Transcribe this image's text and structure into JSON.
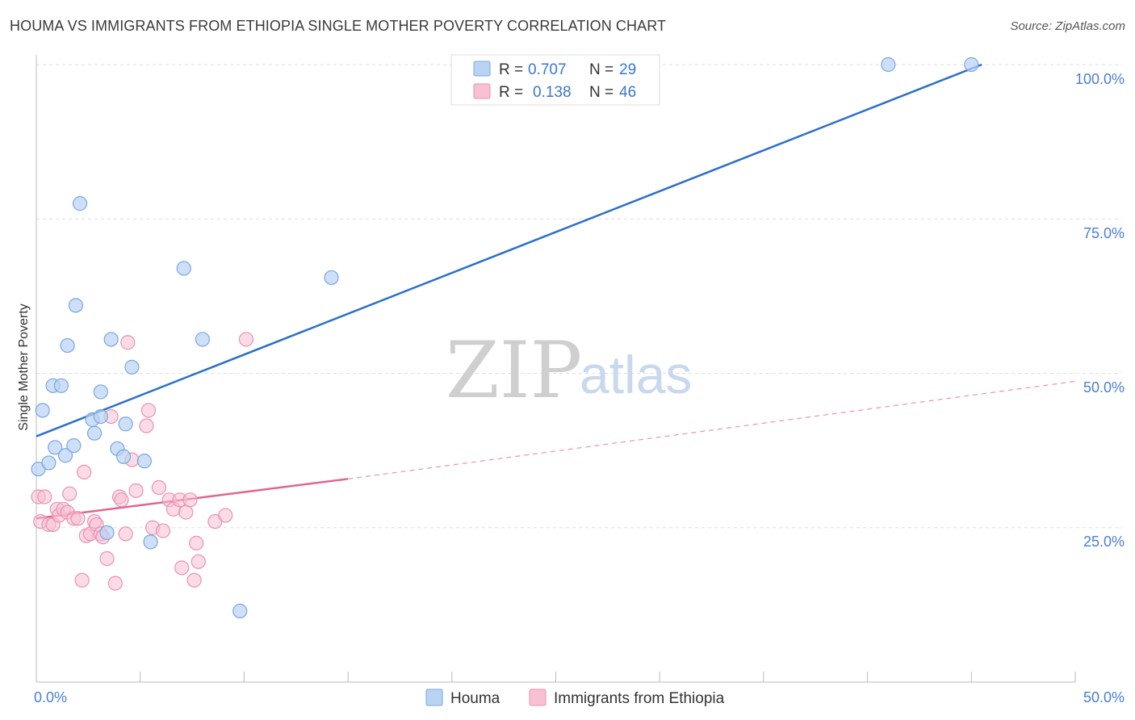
{
  "header": {
    "title": "HOUMA VS IMMIGRANTS FROM ETHIOPIA SINGLE MOTHER POVERTY CORRELATION CHART",
    "source": "Source: ZipAtlas.com"
  },
  "watermark": {
    "zip": "ZIP",
    "atlas": "atlas"
  },
  "legend_top": {
    "r_label": "R =",
    "n_label": "N =",
    "rows": [
      {
        "r": "0.707",
        "n": "29"
      },
      {
        "r": "0.138",
        "n": "46"
      }
    ]
  },
  "colors": {
    "houma_fill": "#b9d3f5",
    "houma_stroke": "#7aa6e0",
    "houma_line": "#2a6fce",
    "ethiopia_fill": "#f8c0d2",
    "ethiopia_stroke": "#e992b1",
    "ethiopia_line": "#e0658f",
    "grid": "#dddddd"
  },
  "chart_data": {
    "type": "scatter",
    "title": "HOUMA VS IMMIGRANTS FROM ETHIOPIA SINGLE MOTHER POVERTY CORRELATION CHART",
    "xlabel": "",
    "ylabel": "Single Mother Poverty",
    "xlim": [
      0,
      50
    ],
    "ylim": [
      0,
      102.5
    ],
    "x_tick_labels": [
      "0.0%",
      "50.0%"
    ],
    "y_ticks": [
      25,
      50,
      75,
      100
    ],
    "y_tick_labels": [
      "25.0%",
      "50.0%",
      "75.0%",
      "100.0%"
    ],
    "grid": true,
    "legend_position": "top-center",
    "series": [
      {
        "name": "Houma",
        "R": 0.707,
        "N": 29,
        "points": [
          [
            0.1,
            34.5
          ],
          [
            0.3,
            44.0
          ],
          [
            0.6,
            35.5
          ],
          [
            0.8,
            48.0
          ],
          [
            0.9,
            38.0
          ],
          [
            1.2,
            48.0
          ],
          [
            1.4,
            36.7
          ],
          [
            1.5,
            54.5
          ],
          [
            1.8,
            38.3
          ],
          [
            1.9,
            61.0
          ],
          [
            2.1,
            77.5
          ],
          [
            2.7,
            42.5
          ],
          [
            2.8,
            40.3
          ],
          [
            3.1,
            43.0
          ],
          [
            3.1,
            47.0
          ],
          [
            3.4,
            24.2
          ],
          [
            3.6,
            55.5
          ],
          [
            3.9,
            37.8
          ],
          [
            4.2,
            36.5
          ],
          [
            4.3,
            41.8
          ],
          [
            4.6,
            51.0
          ],
          [
            5.2,
            35.8
          ],
          [
            5.5,
            22.7
          ],
          [
            7.1,
            67.0
          ],
          [
            8.0,
            55.5
          ],
          [
            9.8,
            11.5
          ],
          [
            14.2,
            65.5
          ],
          [
            41.0,
            100.0
          ],
          [
            45.0,
            100.0
          ]
        ],
        "trend": {
          "x": [
            0,
            45.5
          ],
          "y": [
            39.8,
            100.0
          ]
        }
      },
      {
        "name": "Immigrants from Ethiopia",
        "R": 0.138,
        "N": 46,
        "points": [
          [
            0.1,
            30.0
          ],
          [
            0.2,
            26.0
          ],
          [
            0.4,
            30.0
          ],
          [
            0.6,
            25.5
          ],
          [
            0.8,
            25.5
          ],
          [
            1.0,
            28.0
          ],
          [
            1.1,
            27.0
          ],
          [
            1.3,
            28.0
          ],
          [
            1.5,
            27.5
          ],
          [
            1.6,
            30.5
          ],
          [
            1.8,
            26.5
          ],
          [
            2.0,
            26.5
          ],
          [
            2.2,
            16.5
          ],
          [
            2.3,
            34.0
          ],
          [
            2.4,
            23.7
          ],
          [
            2.6,
            24.0
          ],
          [
            2.8,
            26.0
          ],
          [
            2.9,
            25.5
          ],
          [
            3.1,
            24.0
          ],
          [
            3.2,
            23.5
          ],
          [
            3.4,
            20.0
          ],
          [
            3.6,
            43.0
          ],
          [
            3.8,
            16.0
          ],
          [
            4.0,
            30.0
          ],
          [
            4.1,
            29.5
          ],
          [
            4.3,
            24.0
          ],
          [
            4.4,
            55.0
          ],
          [
            4.6,
            36.0
          ],
          [
            4.8,
            31.0
          ],
          [
            5.3,
            41.5
          ],
          [
            5.4,
            44.0
          ],
          [
            5.6,
            25.0
          ],
          [
            5.9,
            31.5
          ],
          [
            6.1,
            24.5
          ],
          [
            6.4,
            29.5
          ],
          [
            6.6,
            28.0
          ],
          [
            6.9,
            29.5
          ],
          [
            7.0,
            18.5
          ],
          [
            7.2,
            27.5
          ],
          [
            7.4,
            29.5
          ],
          [
            7.6,
            16.5
          ],
          [
            7.7,
            22.5
          ],
          [
            7.8,
            19.5
          ],
          [
            8.6,
            26.0
          ],
          [
            9.1,
            27.0
          ],
          [
            10.1,
            55.5
          ]
        ],
        "trend_solid": {
          "x": [
            0,
            15.0
          ],
          "y": [
            26.5,
            32.9
          ]
        },
        "trend_dashed": {
          "x": [
            15.0,
            50.0
          ],
          "y": [
            32.9,
            48.7
          ]
        }
      }
    ]
  },
  "legend_bottom": {
    "items": [
      "Houma",
      "Immigrants from Ethiopia"
    ]
  }
}
